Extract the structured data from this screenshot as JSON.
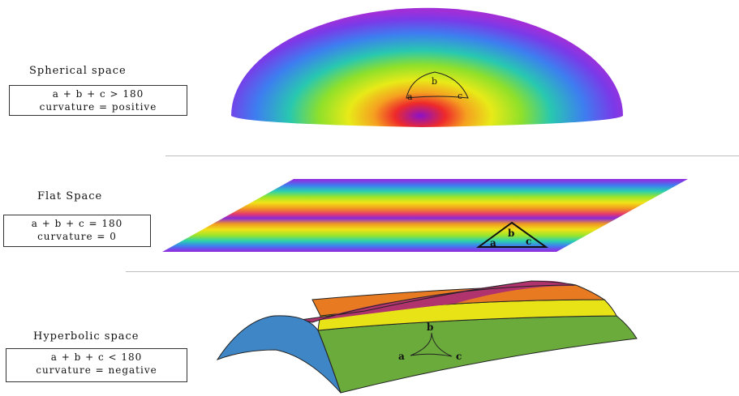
{
  "spherical": {
    "title": "Spherical space",
    "formula": "a + b + c > 180",
    "curvature": "curvature = positive",
    "angles": {
      "a": "a",
      "b": "b",
      "c": "c"
    }
  },
  "flat": {
    "title": "Flat Space",
    "formula": "a + b + c = 180",
    "curvature": "curvature = 0",
    "angles": {
      "a": "a",
      "b": "b",
      "c": "c"
    }
  },
  "hyperbolic": {
    "title": "Hyperbolic space",
    "formula": "a + b + c < 180",
    "curvature": "curvature = negative",
    "angles": {
      "a": "a",
      "b": "b",
      "c": "c"
    }
  },
  "colors": {
    "saddle_blue": "#3f86c6",
    "saddle_magenta": "#b0336e",
    "saddle_orange": "#e87b22",
    "saddle_yellow": "#e7e316",
    "saddle_green": "#6aab3c"
  }
}
